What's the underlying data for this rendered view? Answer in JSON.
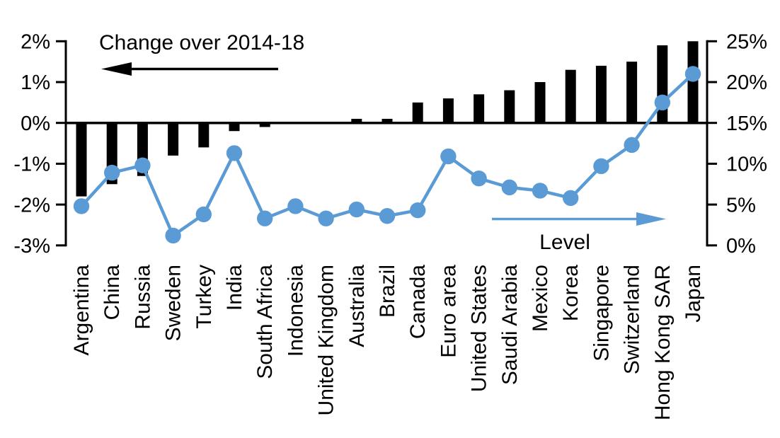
{
  "chart_data": {
    "type": "bar+line combo",
    "categories": [
      "Argentina",
      "China",
      "Russia",
      "Sweden",
      "Turkey",
      "India",
      "South Africa",
      "Indonesia",
      "United Kingdom",
      "Australia",
      "Brazil",
      "Canada",
      "Euro area",
      "United States",
      "Saudi Arabia",
      "Mexico",
      "Korea",
      "Singapore",
      "Switzerland",
      "Hong Kong SAR",
      "Japan"
    ],
    "series": [
      {
        "name": "Change over 2014-18",
        "type": "bar",
        "axis": "left",
        "unit": "%",
        "color": "#000000",
        "values": [
          -1.8,
          -1.5,
          -1.3,
          -0.8,
          -0.6,
          -0.2,
          -0.1,
          0.0,
          0.0,
          0.1,
          0.1,
          0.5,
          0.6,
          0.7,
          0.8,
          1.0,
          1.3,
          1.4,
          1.5,
          1.9,
          2.0
        ]
      },
      {
        "name": "Level",
        "type": "line",
        "axis": "right",
        "unit": "%",
        "color": "#5B9BD5",
        "values": [
          4.8,
          8.9,
          9.8,
          1.2,
          3.8,
          11.3,
          3.3,
          4.8,
          3.3,
          4.4,
          3.6,
          4.3,
          10.9,
          8.2,
          7.1,
          6.7,
          5.8,
          9.7,
          12.3,
          17.5,
          21.0
        ]
      }
    ],
    "left_axis": {
      "ticks": [
        "2%",
        "1%",
        "0%",
        "-1%",
        "-2%",
        "-3%"
      ],
      "values": [
        2,
        1,
        0,
        -1,
        -2,
        -3
      ],
      "range": [
        -3,
        2
      ]
    },
    "right_axis": {
      "ticks": [
        "25%",
        "20%",
        "15%",
        "10%",
        "5%",
        "0%"
      ],
      "values": [
        25,
        20,
        15,
        10,
        5,
        0
      ],
      "range": [
        0,
        25
      ]
    },
    "annotations": {
      "bar_label": "Change over 2014-18",
      "line_label": "Level"
    },
    "legend_position": "none",
    "grid": false
  },
  "colors": {
    "bar": "#000000",
    "line": "#5B9BD5",
    "background": "#FFFFFF",
    "text": "#000000"
  }
}
